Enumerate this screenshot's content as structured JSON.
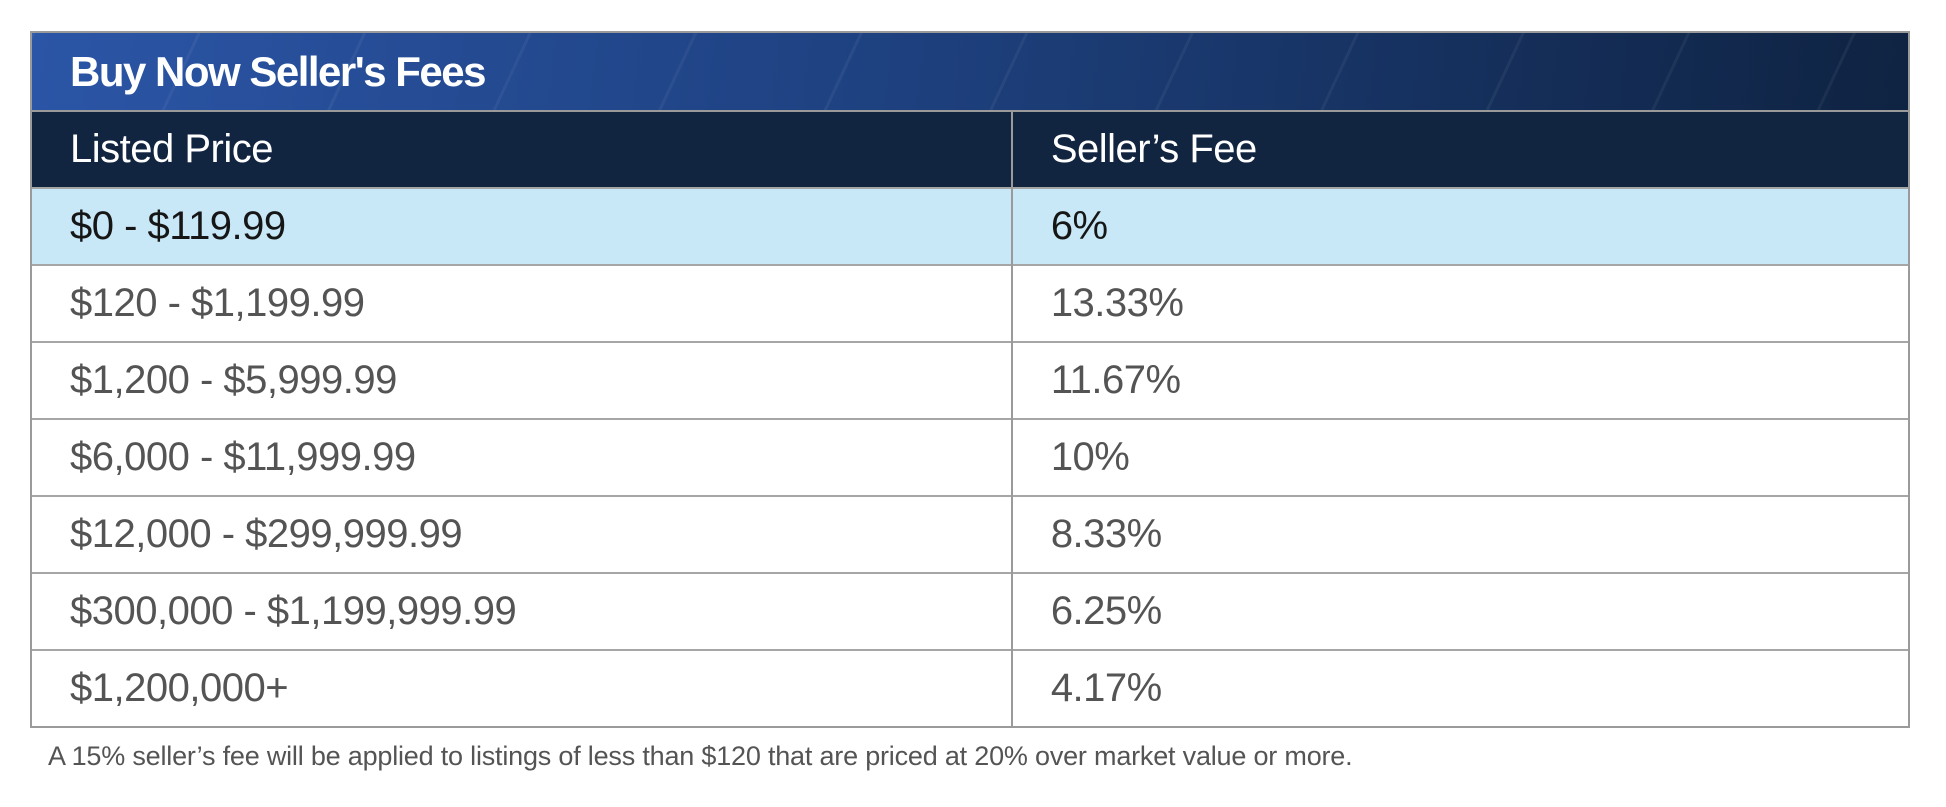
{
  "panel": {
    "title": "Buy Now Seller's Fees"
  },
  "table": {
    "columns": [
      "Listed Price",
      "Seller’s Fee"
    ],
    "rows": [
      {
        "listed_price": "$0 - $119.99",
        "sellers_fee": "6%",
        "highlighted": true
      },
      {
        "listed_price": "$120 - $1,199.99",
        "sellers_fee": "13.33%",
        "highlighted": false
      },
      {
        "listed_price": "$1,200 - $5,999.99",
        "sellers_fee": "11.67%",
        "highlighted": false
      },
      {
        "listed_price": "$6,000 - $11,999.99",
        "sellers_fee": "10%",
        "highlighted": false
      },
      {
        "listed_price": "$12,000 - $299,999.99",
        "sellers_fee": "8.33%",
        "highlighted": false
      },
      {
        "listed_price": "$300,000 - $1,199,999.99",
        "sellers_fee": "6.25%",
        "highlighted": false
      },
      {
        "listed_price": "$1,200,000+",
        "sellers_fee": "4.17%",
        "highlighted": false
      }
    ]
  },
  "footnote": "A 15% seller’s fee will be applied to listings of less than $120 that are priced at 20% over market value or more.",
  "colors": {
    "title_gradient_start": "#2b55a6",
    "title_gradient_end": "#0f2342",
    "header_bg": "#112440",
    "header_text": "#ffffff",
    "highlight_row_bg": "#c8e7f7",
    "highlight_row_text": "#161616",
    "body_text": "#545454",
    "border": "#9a9a9a",
    "page_bg": "#ffffff"
  },
  "chart_data": {
    "type": "table",
    "title": "Buy Now Seller's Fees",
    "columns": [
      "Listed Price",
      "Seller’s Fee"
    ],
    "rows": [
      [
        "$0 - $119.99",
        "6%"
      ],
      [
        "$120 - $1,199.99",
        "13.33%"
      ],
      [
        "$1,200 - $5,999.99",
        "11.67%"
      ],
      [
        "$6,000 - $11,999.99",
        "10%"
      ],
      [
        "$12,000 - $299,999.99",
        "8.33%"
      ],
      [
        "$300,000 - $1,199,999.99",
        "6.25%"
      ],
      [
        "$1,200,000+",
        "4.17%"
      ]
    ],
    "highlighted_row_index": 0,
    "footnote": "A 15% seller’s fee will be applied to listings of less than $120 that are priced at 20% over market value or more."
  }
}
